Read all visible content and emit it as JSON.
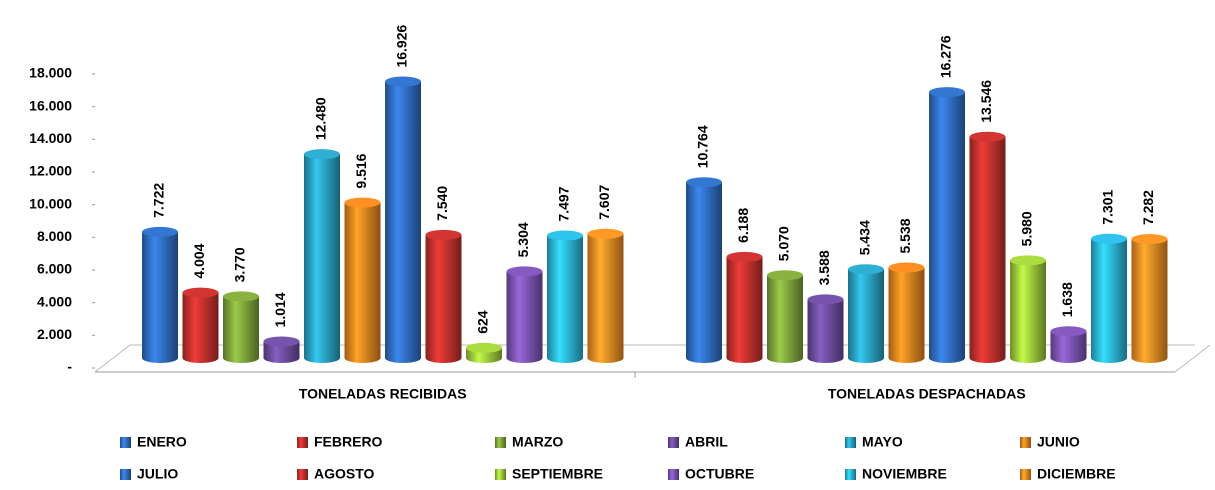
{
  "chart_data": {
    "type": "bar",
    "categories": [
      "TONELADAS RECIBIDAS",
      "TONELADAS DESPACHADAS"
    ],
    "ylim": [
      0,
      18000
    ],
    "yticks": [
      {
        "value": 0,
        "label": "-"
      },
      {
        "value": 2000,
        "label": "2.000"
      },
      {
        "value": 4000,
        "label": "4.000"
      },
      {
        "value": 6000,
        "label": "6.000"
      },
      {
        "value": 8000,
        "label": "8.000"
      },
      {
        "value": 10000,
        "label": "10.000"
      },
      {
        "value": 12000,
        "label": "12.000"
      },
      {
        "value": 14000,
        "label": "14.000"
      },
      {
        "value": 16000,
        "label": "16.000"
      },
      {
        "value": 18000,
        "label": "18.000"
      }
    ],
    "series": [
      {
        "name": "ENERO",
        "color": "#2f6cc0",
        "values": [
          7722,
          10764
        ],
        "value_labels": [
          "7.722",
          "10.764"
        ]
      },
      {
        "name": "FEBRERO",
        "color": "#c0302d",
        "values": [
          4004,
          6188
        ],
        "value_labels": [
          "4.004",
          "6.188"
        ]
      },
      {
        "name": "MARZO",
        "color": "#7da23a",
        "values": [
          3770,
          5070
        ],
        "value_labels": [
          "3.770",
          "5.070"
        ]
      },
      {
        "name": "ABRIL",
        "color": "#6b4c9c",
        "values": [
          1014,
          3588
        ],
        "value_labels": [
          "1.014",
          "3.588"
        ]
      },
      {
        "name": "MAYO",
        "color": "#2a9fc0",
        "values": [
          12480,
          5434
        ],
        "value_labels": [
          "12.480",
          "5.434"
        ]
      },
      {
        "name": "JUNIO",
        "color": "#e7821f",
        "values": [
          9516,
          5538
        ],
        "value_labels": [
          "9.516",
          "5.538"
        ]
      },
      {
        "name": "JULIO",
        "color": "#2f6cc0",
        "values": [
          16926,
          16276
        ],
        "value_labels": [
          "16.926",
          "16.276"
        ]
      },
      {
        "name": "AGOSTO",
        "color": "#c0302d",
        "values": [
          7540,
          13546
        ],
        "value_labels": [
          "7.540",
          "13.546"
        ]
      },
      {
        "name": "SEPTIEMBRE",
        "color": "#9bc83a",
        "values": [
          624,
          5980
        ],
        "value_labels": [
          "624",
          "5.980"
        ]
      },
      {
        "name": "OCTUBRE",
        "color": "#7b52b0",
        "values": [
          5304,
          1638
        ],
        "value_labels": [
          "5.304",
          "1.638"
        ]
      },
      {
        "name": "NOVIEMBRE",
        "color": "#2ab2d8",
        "values": [
          7497,
          7301
        ],
        "value_labels": [
          "7.497",
          "7.301"
        ]
      },
      {
        "name": "DICIEMBRE",
        "color": "#f08a22",
        "values": [
          7607,
          7282
        ],
        "value_labels": [
          "7.607",
          "7.282"
        ]
      }
    ]
  }
}
